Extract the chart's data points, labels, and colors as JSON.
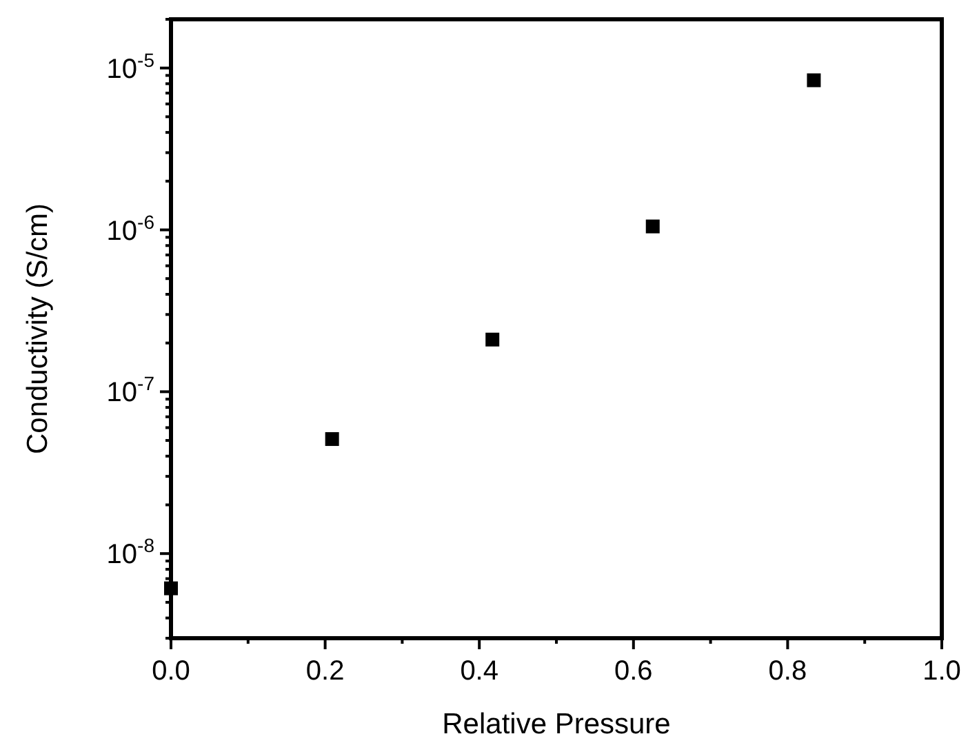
{
  "chart_data": {
    "type": "scatter",
    "xlabel": "Relative Pressure",
    "ylabel": "Conductivity (S/cm)",
    "log": "y",
    "marker": "square",
    "grid": false,
    "xlim": [
      0,
      1
    ],
    "ylim": [
      3e-09,
      2e-05
    ],
    "xticks": [
      {
        "value": 0,
        "label": "0.0"
      },
      {
        "value": 0.1,
        "label": null
      },
      {
        "value": 0.2,
        "label": "0.2"
      },
      {
        "value": 0.3,
        "label": null
      },
      {
        "value": 0.4,
        "label": "0.4"
      },
      {
        "value": 0.5,
        "label": null
      },
      {
        "value": 0.6,
        "label": "0.6"
      },
      {
        "value": 0.7,
        "label": null
      },
      {
        "value": 0.8,
        "label": "0.8"
      },
      {
        "value": 0.9,
        "label": null
      },
      {
        "value": 1,
        "label": "1.0"
      }
    ],
    "yticks": [
      {
        "value": 3e-09,
        "label": null
      },
      {
        "value": 4e-09,
        "label": null
      },
      {
        "value": 5e-09,
        "label": null
      },
      {
        "value": 6e-09,
        "label": null
      },
      {
        "value": 7e-09,
        "label": null
      },
      {
        "value": 8e-09,
        "label": null
      },
      {
        "value": 9e-09,
        "label": null
      },
      {
        "value": 1e-08,
        "label": "10$^{-8}$"
      },
      {
        "value": 2e-08,
        "label": null
      },
      {
        "value": 3e-08,
        "label": null
      },
      {
        "value": 4e-08,
        "label": null
      },
      {
        "value": 5e-08,
        "label": null
      },
      {
        "value": 6e-08,
        "label": null
      },
      {
        "value": 7e-08,
        "label": null
      },
      {
        "value": 8e-08,
        "label": null
      },
      {
        "value": 9e-08,
        "label": null
      },
      {
        "value": 1e-07,
        "label": "10$^{-7}$"
      },
      {
        "value": 2e-07,
        "label": null
      },
      {
        "value": 3e-07,
        "label": null
      },
      {
        "value": 4e-07,
        "label": null
      },
      {
        "value": 5e-07,
        "label": null
      },
      {
        "value": 6e-07,
        "label": null
      },
      {
        "value": 7e-07,
        "label": null
      },
      {
        "value": 8e-07,
        "label": null
      },
      {
        "value": 9e-07,
        "label": null
      },
      {
        "value": 1e-06,
        "label": "10$^{-6}$"
      },
      {
        "value": 2e-06,
        "label": null
      },
      {
        "value": 3e-06,
        "label": null
      },
      {
        "value": 4e-06,
        "label": null
      },
      {
        "value": 5e-06,
        "label": null
      },
      {
        "value": 6e-06,
        "label": null
      },
      {
        "value": 7e-06,
        "label": null
      },
      {
        "value": 8e-06,
        "label": null
      },
      {
        "value": 9e-06,
        "label": null
      },
      {
        "value": 1e-05,
        "label": "10$^{-5}$"
      },
      {
        "value": 2e-05,
        "label": null
      }
    ],
    "series": [
      {
        "color": "#000000",
        "x": [
          0,
          0.209,
          0.417,
          0.625,
          0.834
        ],
        "values": [
          6.1e-09,
          5.1e-08,
          2.1e-07,
          1.05e-06,
          8.4e-06
        ]
      }
    ]
  }
}
